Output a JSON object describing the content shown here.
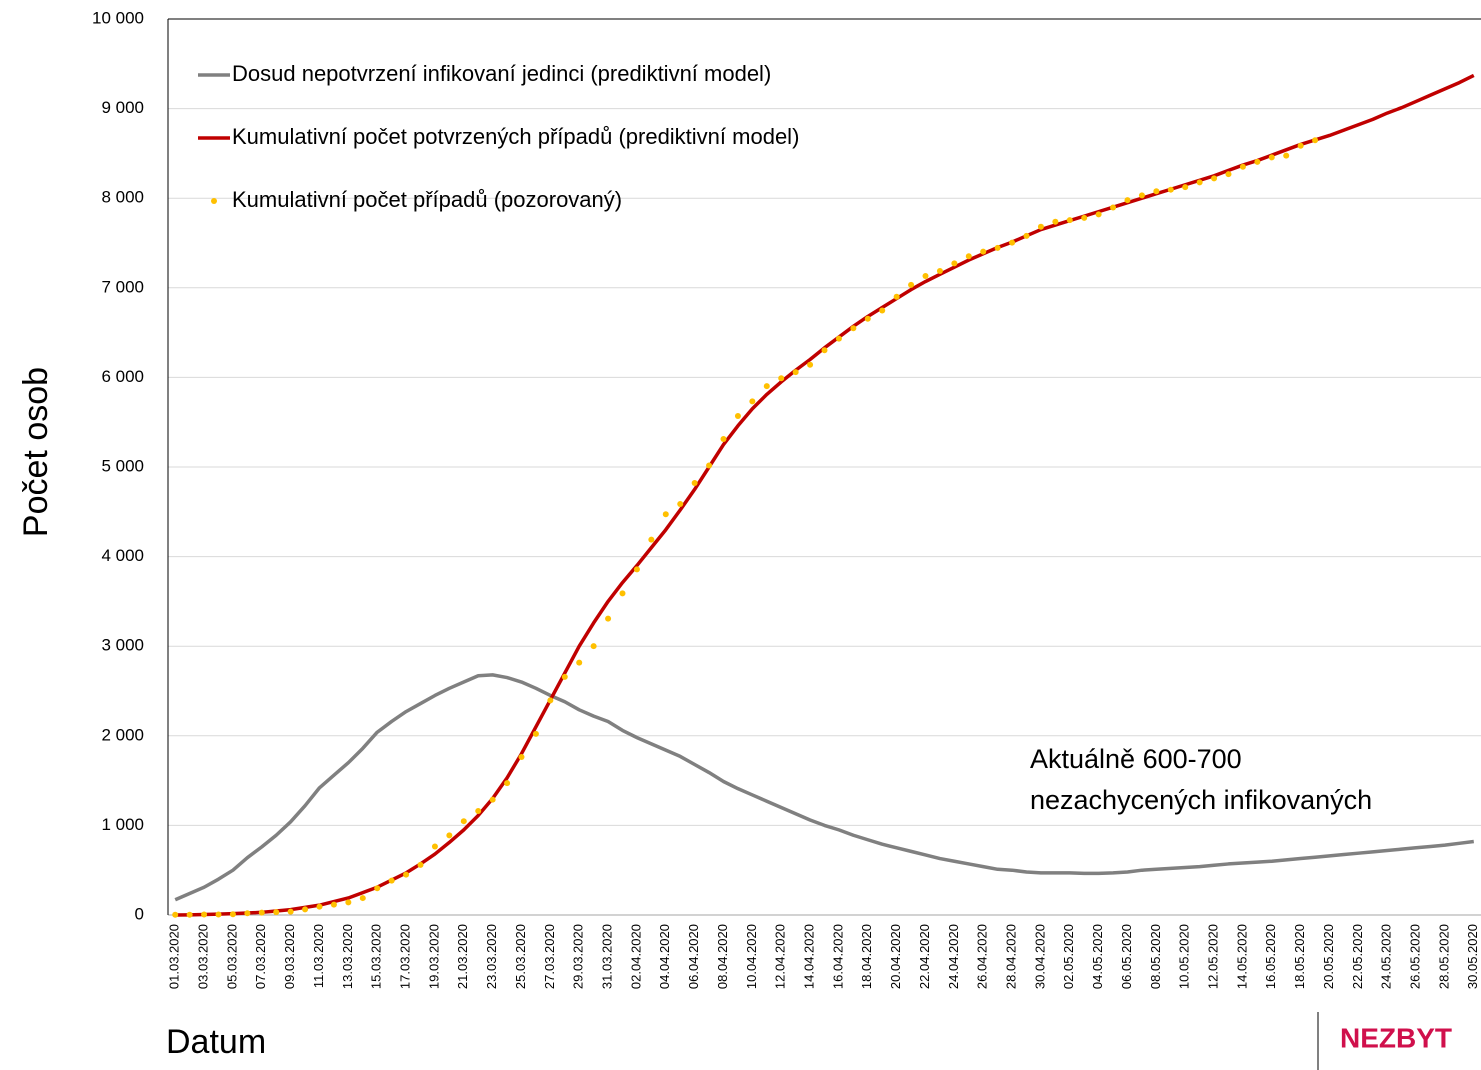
{
  "chart_data": {
    "type": "line",
    "ylabel": "Počet osob",
    "xlabel": "Datum",
    "annotation": [
      "Aktuálně 600-700",
      "nezachycených infikovaných"
    ],
    "footer": "NEZBYT",
    "legend": "upper left",
    "grid": true,
    "ylim": [
      0,
      10000
    ],
    "yticks": [
      0,
      {
        "value": 1000,
        "label": "1 000"
      },
      {
        "value": 2000,
        "label": "2 000"
      },
      {
        "value": 3000,
        "label": "3 000"
      },
      {
        "value": 4000,
        "label": "4 000"
      },
      {
        "value": 5000,
        "label": "5 000"
      },
      {
        "value": 6000,
        "label": "6 000"
      },
      {
        "value": 7000,
        "label": "7 000"
      },
      {
        "value": 8000,
        "label": "8 000"
      },
      {
        "value": 9000,
        "label": "9 000"
      },
      {
        "value": 10000,
        "label": "10 000"
      }
    ],
    "categories": [
      "01.03.2020",
      null,
      "03.03.2020",
      null,
      "05.03.2020",
      null,
      "07.03.2020",
      null,
      "09.03.2020",
      null,
      "11.03.2020",
      null,
      "13.03.2020",
      null,
      "15.03.2020",
      null,
      "17.03.2020",
      null,
      "19.03.2020",
      null,
      "21.03.2020",
      null,
      "23.03.2020",
      null,
      "25.03.2020",
      null,
      "27.03.2020",
      null,
      "29.03.2020",
      null,
      "31.03.2020",
      null,
      "02.04.2020",
      null,
      "04.04.2020",
      null,
      "06.04.2020",
      null,
      "08.04.2020",
      null,
      "10.04.2020",
      null,
      "12.04.2020",
      null,
      "14.04.2020",
      null,
      "16.04.2020",
      null,
      "18.04.2020",
      null,
      "20.04.2020",
      null,
      "22.04.2020",
      null,
      "24.04.2020",
      null,
      "26.04.2020",
      null,
      "28.04.2020",
      null,
      "30.04.2020",
      null,
      "02.05.2020",
      null,
      "04.05.2020",
      null,
      "06.05.2020",
      null,
      "08.05.2020",
      null,
      "10.05.2020",
      null,
      "12.05.2020",
      null,
      "14.05.2020",
      null,
      "16.05.2020",
      null,
      "18.05.2020",
      null,
      "20.05.2020",
      null,
      "22.05.2020",
      null,
      "24.05.2020",
      null,
      "26.05.2020",
      null,
      "28.05.2020",
      null,
      "30.05.2020"
    ],
    "series": [
      {
        "name": "Dosud nepotvrzení infikovaní jedinci (prediktivní model)",
        "color": "#808080",
        "style": "line",
        "values": [
          170,
          240,
          310,
          400,
          500,
          640,
          760,
          890,
          1040,
          1220,
          1420,
          1560,
          1700,
          1860,
          2040,
          2160,
          2270,
          2360,
          2450,
          2530,
          2600,
          2670,
          2680,
          2650,
          2600,
          2530,
          2450,
          2380,
          2290,
          2220,
          2160,
          2060,
          1980,
          1910,
          1840,
          1770,
          1680,
          1590,
          1490,
          1410,
          1340,
          1270,
          1200,
          1130,
          1060,
          1000,
          950,
          890,
          840,
          790,
          750,
          710,
          670,
          630,
          600,
          570,
          540,
          510,
          500,
          480,
          470,
          470,
          470,
          465,
          465,
          470,
          480,
          500,
          510,
          520,
          530,
          540,
          555,
          570,
          580,
          590,
          600,
          615,
          630,
          645,
          660,
          675,
          690,
          705,
          720,
          735,
          750,
          765,
          780,
          800,
          820
        ]
      },
      {
        "name": "Kumulativní počet potvrzených případů (prediktivní model)",
        "color": "#c00000",
        "style": "line",
        "values": [
          0,
          2,
          5,
          10,
          15,
          22,
          30,
          45,
          60,
          85,
          110,
          150,
          190,
          250,
          310,
          390,
          470,
          570,
          680,
          810,
          950,
          1110,
          1300,
          1530,
          1800,
          2100,
          2400,
          2700,
          3000,
          3260,
          3500,
          3710,
          3900,
          4100,
          4300,
          4520,
          4750,
          5000,
          5250,
          5460,
          5650,
          5810,
          5950,
          6080,
          6200,
          6330,
          6450,
          6570,
          6680,
          6780,
          6880,
          6980,
          7070,
          7150,
          7230,
          7310,
          7380,
          7450,
          7510,
          7580,
          7650,
          7700,
          7750,
          7800,
          7850,
          7900,
          7950,
          8000,
          8050,
          8100,
          8150,
          8200,
          8250,
          8310,
          8370,
          8420,
          8480,
          8540,
          8600,
          8650,
          8700,
          8760,
          8820,
          8880,
          8950,
          9010,
          9080,
          9150,
          9220,
          9290,
          9370
        ]
      },
      {
        "name": "Kumulativní počet případů (pozorovaný)",
        "color": "#ffc000",
        "style": "dots",
        "values": [
          3,
          3,
          5,
          5,
          8,
          19,
          26,
          32,
          38,
          63,
          94,
          116,
          141,
          189,
          298,
          383,
          450,
          560,
          765,
          889,
          1047,
          1161,
          1287,
          1472,
          1763,
          2022,
          2395,
          2657,
          2817,
          3001,
          3308,
          3589,
          3858,
          4190,
          4472,
          4587,
          4822,
          5017,
          5312,
          5569,
          5732,
          5902,
          5991,
          6059,
          6141,
          6303,
          6433,
          6549,
          6654,
          6746,
          6900,
          7033,
          7132,
          7187,
          7273,
          7352,
          7404,
          7445,
          7504,
          7579,
          7682,
          7737,
          7755,
          7781,
          7819,
          7896,
          7979,
          8031,
          8077,
          8095,
          8123,
          8176,
          8221,
          8269,
          8351,
          8406,
          8455,
          8475,
          8586,
          8647,
          null,
          null,
          null,
          null,
          null,
          null,
          null,
          null,
          null,
          null,
          null
        ]
      }
    ]
  }
}
